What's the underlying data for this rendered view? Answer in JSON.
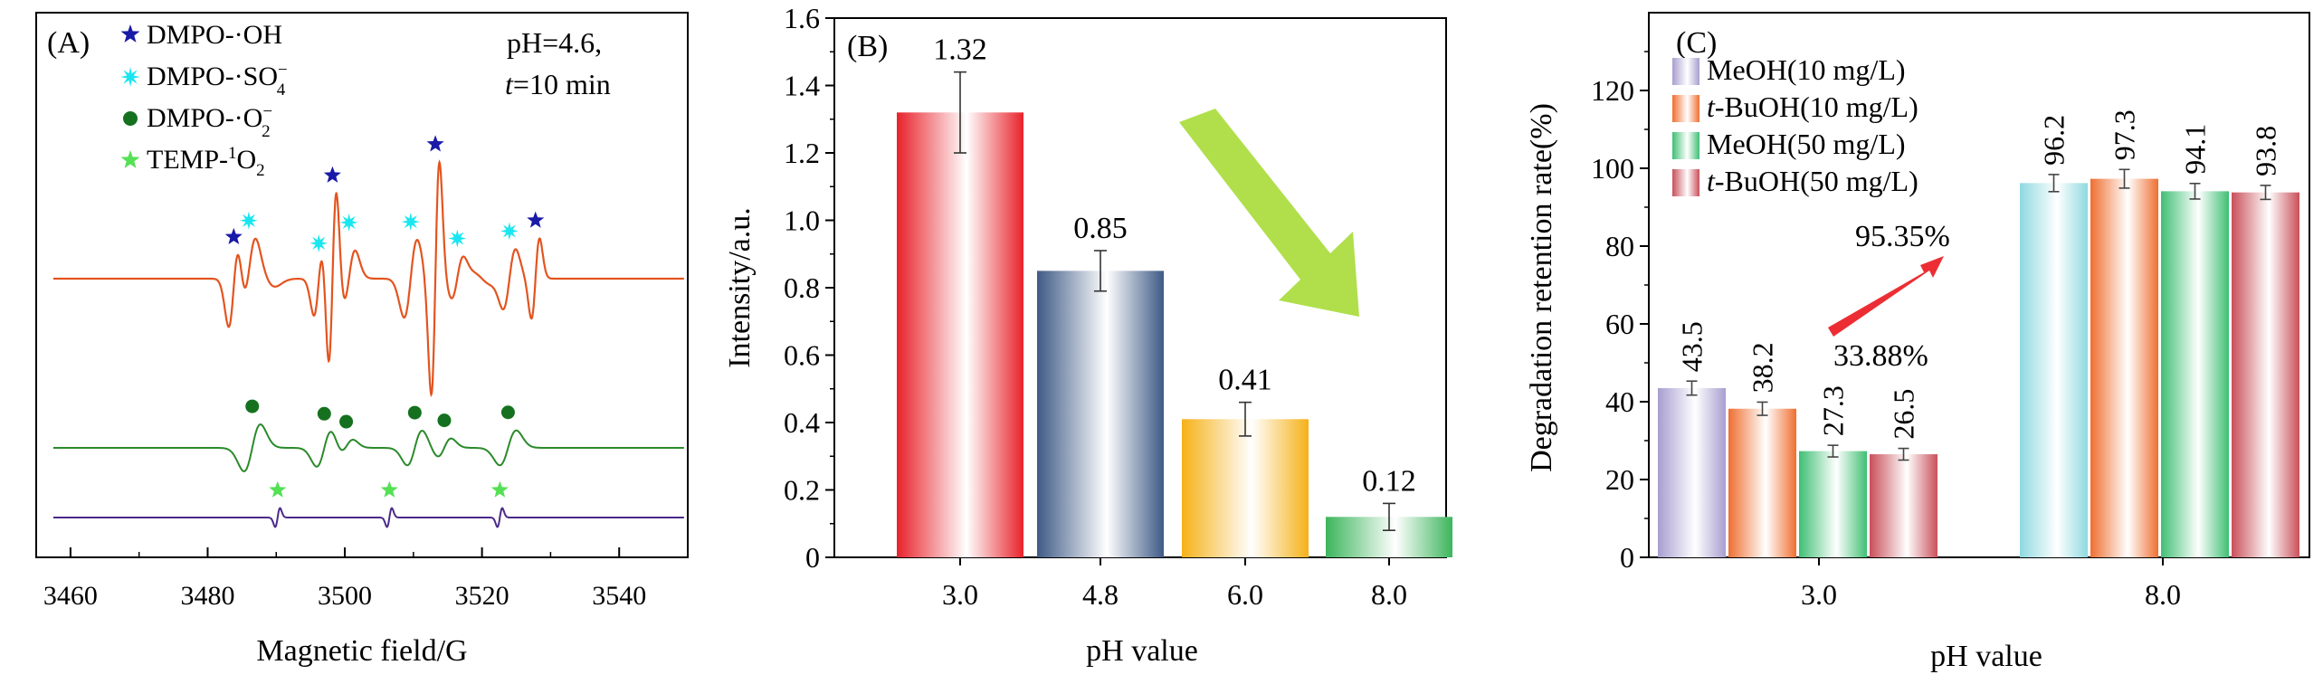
{
  "chart_data": [
    {
      "panel": "(A)",
      "type": "line",
      "xlabel": "Magnetic field/G",
      "ylabel": "",
      "xlim": [
        3455,
        3550
      ],
      "xticks": [
        3460,
        3480,
        3500,
        3520,
        3540
      ],
      "annotation": [
        "pH=4.6,",
        "t=10 min"
      ],
      "legend": [
        {
          "label": "DMPO-·OH",
          "marker": "star",
          "color": "#1a1aa8"
        },
        {
          "label": "DMPO-·SO4−",
          "marker": "sparkle",
          "color": "#19e6f0"
        },
        {
          "label": "DMPO-·O2−",
          "marker": "dot",
          "color": "#15711f"
        },
        {
          "label": "TEMP-1O2",
          "marker": "star",
          "color": "#55e055"
        }
      ],
      "series": [
        {
          "color": "#e3541f",
          "peaks": [
            {
              "x": 3483.8,
              "a": 70,
              "w": 0.75,
              "marker": "star"
            },
            {
              "x": 3486.0,
              "a": 48,
              "w": 0.95,
              "marker": "sparkle"
            },
            {
              "x": 3488.5,
              "a": -12,
              "w": 1.3
            },
            {
              "x": 3496.2,
              "a": 55,
              "w": 0.7,
              "marker": "sparkle"
            },
            {
              "x": 3498.2,
              "a": 145,
              "w": 0.6,
              "marker": "star"
            },
            {
              "x": 3500.6,
              "a": 42,
              "w": 0.9,
              "marker": "sparkle"
            },
            {
              "x": 3509.6,
              "a": 58,
              "w": 0.95,
              "marker": "sparkle"
            },
            {
              "x": 3513.2,
              "a": 175,
              "w": 0.6,
              "marker": "star"
            },
            {
              "x": 3516.4,
              "a": 30,
              "w": 0.85,
              "marker": "sparkle"
            },
            {
              "x": 3520.0,
              "a": -8,
              "w": 1.3
            },
            {
              "x": 3524.0,
              "a": 44,
              "w": 0.9,
              "marker": "sparkle"
            },
            {
              "x": 3527.8,
              "a": 60,
              "w": 0.6,
              "marker": "star"
            }
          ]
        },
        {
          "color": "#2b8a2b",
          "peaks": [
            {
              "x": 3486.5,
              "a": 35,
              "w": 1.2,
              "marker": "dot"
            },
            {
              "x": 3497.0,
              "a": 28,
              "w": 1.1,
              "marker": "dot"
            },
            {
              "x": 3500.2,
              "a": 12,
              "w": 1.0,
              "marker": "dot"
            },
            {
              "x": 3510.2,
              "a": 26,
              "w": 1.1,
              "marker": "dot"
            },
            {
              "x": 3514.5,
              "a": 14,
              "w": 1.0,
              "marker": "dot"
            },
            {
              "x": 3523.8,
              "a": 26,
              "w": 1.2,
              "marker": "dot"
            }
          ]
        },
        {
          "color": "#4b2a8a",
          "peaks": [
            {
              "x": 3490.2,
              "a": 14,
              "w": 0.35,
              "marker": "star"
            },
            {
              "x": 3506.5,
              "a": 14,
              "w": 0.35,
              "marker": "star"
            },
            {
              "x": 3522.6,
              "a": 14,
              "w": 0.35,
              "marker": "star"
            }
          ]
        }
      ]
    },
    {
      "panel": "(B)",
      "type": "bar",
      "xlabel": "pH value",
      "ylabel": "Intensity/a.u.",
      "ylim": [
        0,
        1.6
      ],
      "yticks": [
        "0",
        "0.2",
        "0.4",
        "0.6",
        "0.8",
        "1.0",
        "1.2",
        "1.4",
        "1.6"
      ],
      "categories": [
        "3.0",
        "4.8",
        "6.0",
        "8.0"
      ],
      "values": [
        1.32,
        0.85,
        0.41,
        0.12
      ],
      "errors": [
        0.12,
        0.06,
        0.05,
        0.04
      ],
      "value_labels": [
        "1.32",
        "0.85",
        "0.41",
        "0.12"
      ],
      "colors": [
        "#e8222a",
        "#3e5a86",
        "#f6b118",
        "#3cb55c"
      ]
    },
    {
      "panel": "(C)",
      "type": "bar",
      "xlabel": "pH value",
      "ylabel": "Degradation retention rate(%)",
      "ylim": [
        0,
        140
      ],
      "yticks": [
        "0",
        "20",
        "40",
        "60",
        "80",
        "100",
        "120"
      ],
      "categories": [
        "3.0",
        "8.0"
      ],
      "series": [
        {
          "legend": [
            "",
            "MeOH(10 mg/L)"
          ],
          "color": "#a89ed0",
          "values": [
            43.5,
            96.2
          ],
          "errors": [
            1.8,
            2.2
          ],
          "value_labels": [
            "43.5",
            "96.2"
          ]
        },
        {
          "legend": [
            "t",
            "-BuOH(10 mg/L)"
          ],
          "color": "#ef6f31",
          "values": [
            38.2,
            97.3
          ],
          "errors": [
            1.7,
            2.4
          ],
          "value_labels": [
            "38.2",
            "97.3"
          ]
        },
        {
          "legend": [
            "",
            "MeOH(50 mg/L)"
          ],
          "color": "#3fbf74",
          "values": [
            27.3,
            94.1
          ],
          "errors": [
            1.5,
            2.0
          ],
          "value_labels": [
            "27.3",
            "94.1"
          ]
        },
        {
          "legend": [
            "t",
            "-BuOH(50 mg/L)"
          ],
          "color": "#c9505a",
          "values": [
            26.5,
            93.8
          ],
          "errors": [
            1.5,
            1.8
          ],
          "value_labels": [
            "26.5",
            "93.8"
          ]
        }
      ],
      "annotations": [
        "33.88%",
        "95.35%"
      ]
    }
  ]
}
